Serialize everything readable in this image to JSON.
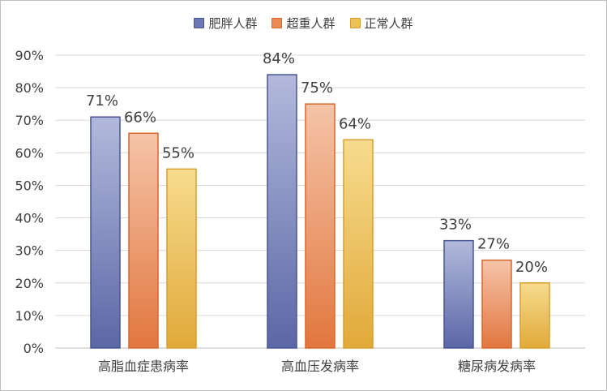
{
  "chart_data": {
    "type": "bar",
    "categories": [
      "高脂血症患病率",
      "高血压发病率",
      "糖尿病发病率"
    ],
    "series": [
      {
        "name": "肥胖人群",
        "values": [
          71,
          84,
          33
        ],
        "color_top": "#b3b9dc",
        "color_bottom": "#5b67a6",
        "stroke": "#4a5596"
      },
      {
        "name": "超重人群",
        "values": [
          66,
          75,
          27
        ],
        "color_top": "#f5c4a8",
        "color_bottom": "#e2773f",
        "stroke": "#d9662e"
      },
      {
        "name": "正常人群",
        "values": [
          55,
          64,
          20
        ],
        "color_top": "#f7dc8e",
        "color_bottom": "#e1a93a",
        "stroke": "#d99e2e"
      }
    ],
    "value_suffix": "%",
    "y_ticks": [
      "0%",
      "10%",
      "20%",
      "30%",
      "40%",
      "50%",
      "60%",
      "70%",
      "80%",
      "90%"
    ],
    "ylim": [
      0,
      90
    ],
    "legend_position": "top",
    "grid": true
  }
}
